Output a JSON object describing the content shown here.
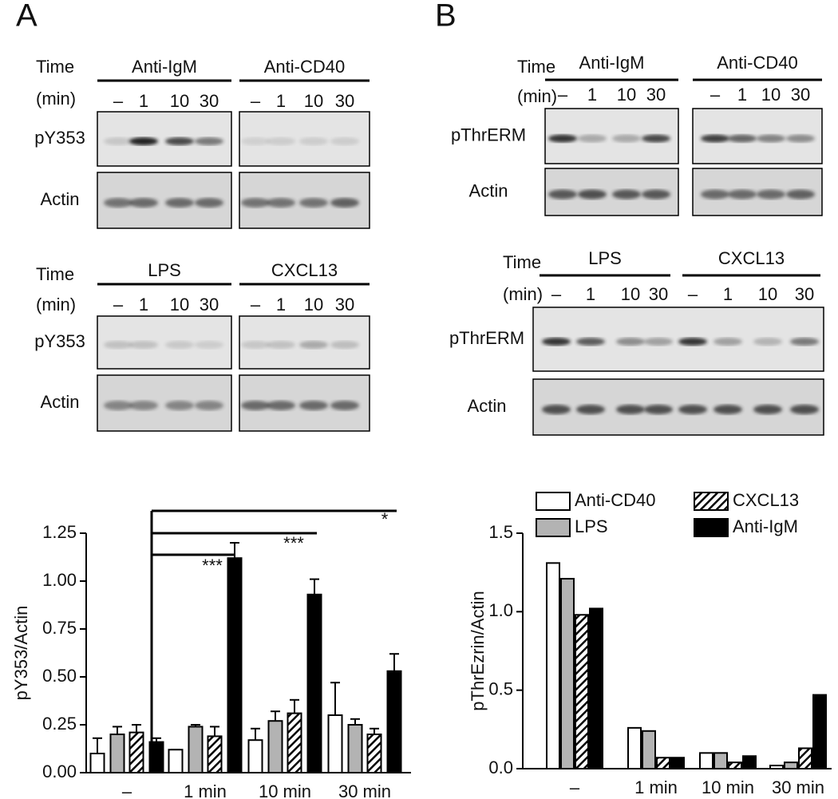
{
  "figure": {
    "panel_labels": [
      "A",
      "B"
    ],
    "blots": [
      {
        "time_label": "Time",
        "unit_label": "(min)",
        "groups": [
          "Anti-IgM",
          "Anti-CD40"
        ],
        "lanes": [
          "–",
          "1",
          "10",
          "30",
          "–",
          "1",
          "10",
          "30"
        ],
        "rows": [
          "pY353",
          "Actin"
        ]
      },
      {
        "time_label": "Time",
        "unit_label": "(min)",
        "groups": [
          "LPS",
          "CXCL13"
        ],
        "lanes": [
          "–",
          "1",
          "10",
          "30",
          "–",
          "1",
          "10",
          "30"
        ],
        "rows": [
          "pY353",
          "Actin"
        ]
      },
      {
        "time_label": "Time",
        "unit_label": "(min)",
        "groups": [
          "Anti-IgM",
          "Anti-CD40"
        ],
        "lanes": [
          "–",
          "1",
          "10",
          "30",
          "–",
          "1",
          "10",
          "30"
        ],
        "rows": [
          "pThrERM",
          "Actin"
        ]
      },
      {
        "time_label": "Time",
        "unit_label": "(min)",
        "groups": [
          "LPS",
          "CXCL13"
        ],
        "lanes": [
          "–",
          "1",
          "10",
          "30",
          "–",
          "1",
          "10",
          "30"
        ],
        "rows": [
          "pThrERM",
          "Actin"
        ]
      }
    ]
  },
  "chart_data": [
    {
      "type": "bar",
      "y_label": "pY353/Actin",
      "categories": [
        "–",
        "1 min",
        "10 min",
        "30 min"
      ],
      "series": [
        {
          "color": "#ffffff",
          "values": [
            0.1,
            0.12,
            0.17,
            0.3
          ],
          "errors": [
            0.08,
            0.0,
            0.06,
            0.17
          ]
        },
        {
          "color": "#b3b3b3",
          "values": [
            0.2,
            0.24,
            0.27,
            0.25
          ],
          "errors": [
            0.04,
            0.01,
            0.05,
            0.03
          ]
        },
        {
          "color": "hatch",
          "values": [
            0.21,
            0.19,
            0.31,
            0.2
          ],
          "errors": [
            0.04,
            0.05,
            0.07,
            0.03
          ]
        },
        {
          "color": "#000000",
          "values": [
            0.16,
            1.12,
            0.93,
            0.53
          ],
          "errors": [
            0.02,
            0.08,
            0.08,
            0.09
          ]
        }
      ],
      "ylim": [
        0,
        1.25
      ],
      "yticks": [
        {
          "value": 0,
          "label": "0.00"
        },
        {
          "value": 0.25,
          "label": "0.25"
        },
        {
          "value": 0.5,
          "label": "0.50"
        },
        {
          "value": 0.75,
          "label": "0.75"
        },
        {
          "value": 1,
          "label": "1.00"
        },
        {
          "value": 1.25,
          "label": "1.25"
        }
      ],
      "annotations": [
        "***",
        "***",
        "*"
      ]
    },
    {
      "type": "bar",
      "y_label": "pThrEzrin/Actin",
      "categories": [
        "–",
        "1 min",
        "10 min",
        "30 min"
      ],
      "series": [
        {
          "name": "Anti-CD40",
          "color": "#ffffff",
          "values": [
            1.31,
            0.26,
            0.1,
            0.02
          ]
        },
        {
          "name": "LPS",
          "color": "#b3b3b3",
          "values": [
            1.21,
            0.24,
            0.1,
            0.04
          ]
        },
        {
          "name": "CXCL13",
          "color": "hatch",
          "values": [
            0.98,
            0.07,
            0.04,
            0.13
          ]
        },
        {
          "name": "Anti-IgM",
          "color": "#000000",
          "values": [
            1.02,
            0.07,
            0.08,
            0.47
          ]
        }
      ],
      "ylim": [
        0,
        1.5
      ],
      "yticks": [
        {
          "value": 0,
          "label": "0.0"
        },
        0.5,
        {
          "value": 1,
          "label": "1.0"
        },
        1.5
      ],
      "legend": "top"
    }
  ]
}
